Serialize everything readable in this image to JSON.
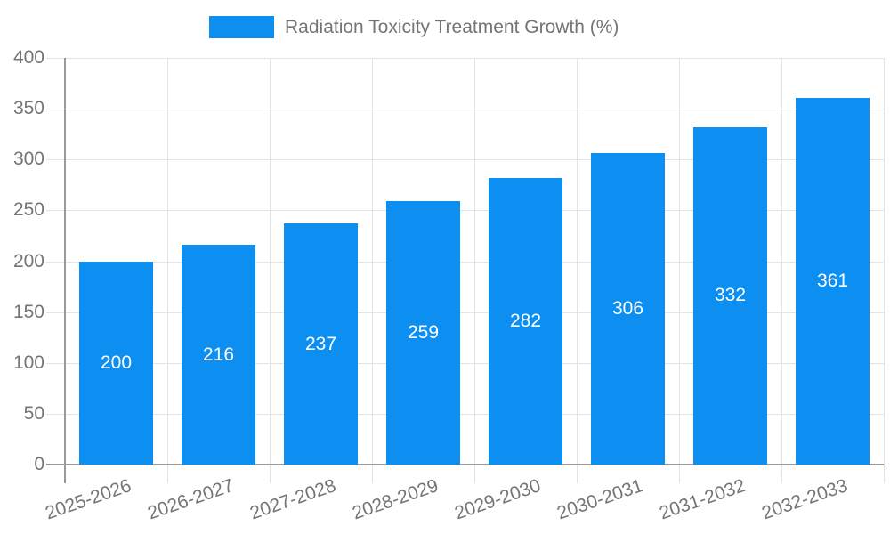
{
  "chart_data": {
    "type": "bar",
    "title": "Radiation Toxicity Treatment Growth (%)",
    "legend_label": "Radiation Toxicity Treatment Growth (%)",
    "legend_position": "top",
    "categories": [
      "2025-2026",
      "2026-2027",
      "2027-2028",
      "2028-2029",
      "2029-2030",
      "2030-2031",
      "2031-2032",
      "2032-2033"
    ],
    "values": [
      200,
      216,
      237,
      259,
      282,
      306,
      332,
      361
    ],
    "value_labels_shown": true,
    "xlabel": "",
    "ylabel": "",
    "ylim": [
      0,
      400
    ],
    "yticks": [
      0,
      50,
      100,
      150,
      200,
      250,
      300,
      350,
      400
    ],
    "grid": true,
    "colors": {
      "bar": "#0D8FF2",
      "gridline": "#e3e3e3",
      "axis": "#999999",
      "tick_text": "#757575",
      "value_text": "#ffffff",
      "legend_text": "#757575",
      "background": "#ffffff"
    }
  }
}
